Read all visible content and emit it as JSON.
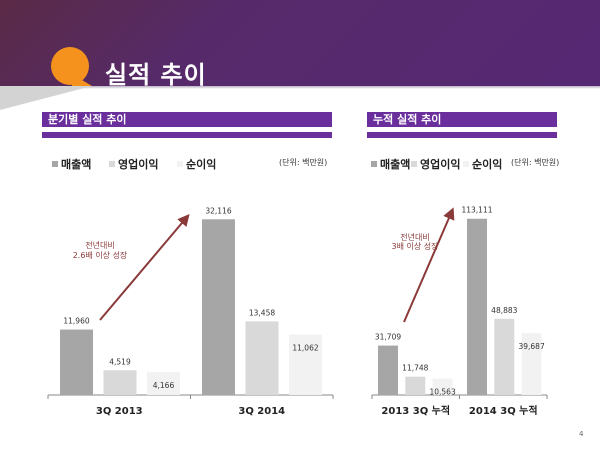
{
  "page": {
    "title": "실적 추이",
    "page_number": "4"
  },
  "colors": {
    "header_purple": "#562874",
    "section_purple": "#6a2f9c",
    "bubble_orange": "#f5921e",
    "arrow": "#8b3a3a"
  },
  "legend": {
    "items": [
      {
        "label": "매출액",
        "color": "#a6a6a6"
      },
      {
        "label": "영업이익",
        "color": "#d9d9d9"
      },
      {
        "label": "순이익",
        "color": "#f2f2f2"
      }
    ],
    "unit": "(단위: 백만원)"
  },
  "chart_data": [
    {
      "type": "bar",
      "title": "분기별 실적 추이",
      "categories": [
        "3Q 2013",
        "3Q 2014"
      ],
      "series": [
        {
          "name": "매출액",
          "values": [
            11960,
            32116
          ]
        },
        {
          "name": "영업이익",
          "values": [
            4519,
            13458
          ]
        },
        {
          "name": "순이익",
          "values": [
            4166,
            11062
          ]
        }
      ],
      "value_labels": [
        [
          "11,960",
          "32,116"
        ],
        [
          "4,519",
          "13,458"
        ],
        [
          "4,166",
          "11,062"
        ]
      ],
      "annotation": [
        "전년대비",
        "2.6배 이상 성장"
      ],
      "xlabel": "",
      "ylabel": "",
      "ylim": [
        0,
        34000
      ],
      "grid": false,
      "legend": "top-left"
    },
    {
      "type": "bar",
      "title": "누적 실적 추이",
      "categories": [
        "2013 3Q 누적",
        "2014 3Q 누적"
      ],
      "series": [
        {
          "name": "매출액",
          "values": [
            31709,
            113111
          ]
        },
        {
          "name": "영업이익",
          "values": [
            11748,
            48883
          ]
        },
        {
          "name": "순이익",
          "values": [
            10563,
            39687
          ]
        }
      ],
      "value_labels": [
        [
          "31,709",
          "113,111"
        ],
        [
          "11,748",
          "48,883"
        ],
        [
          "10,563",
          "39,687"
        ]
      ],
      "annotation": [
        "전년대비",
        "3배 이상 성장"
      ],
      "xlabel": "",
      "ylabel": "",
      "ylim": [
        0,
        120000
      ],
      "grid": false,
      "legend": "top-left"
    }
  ]
}
